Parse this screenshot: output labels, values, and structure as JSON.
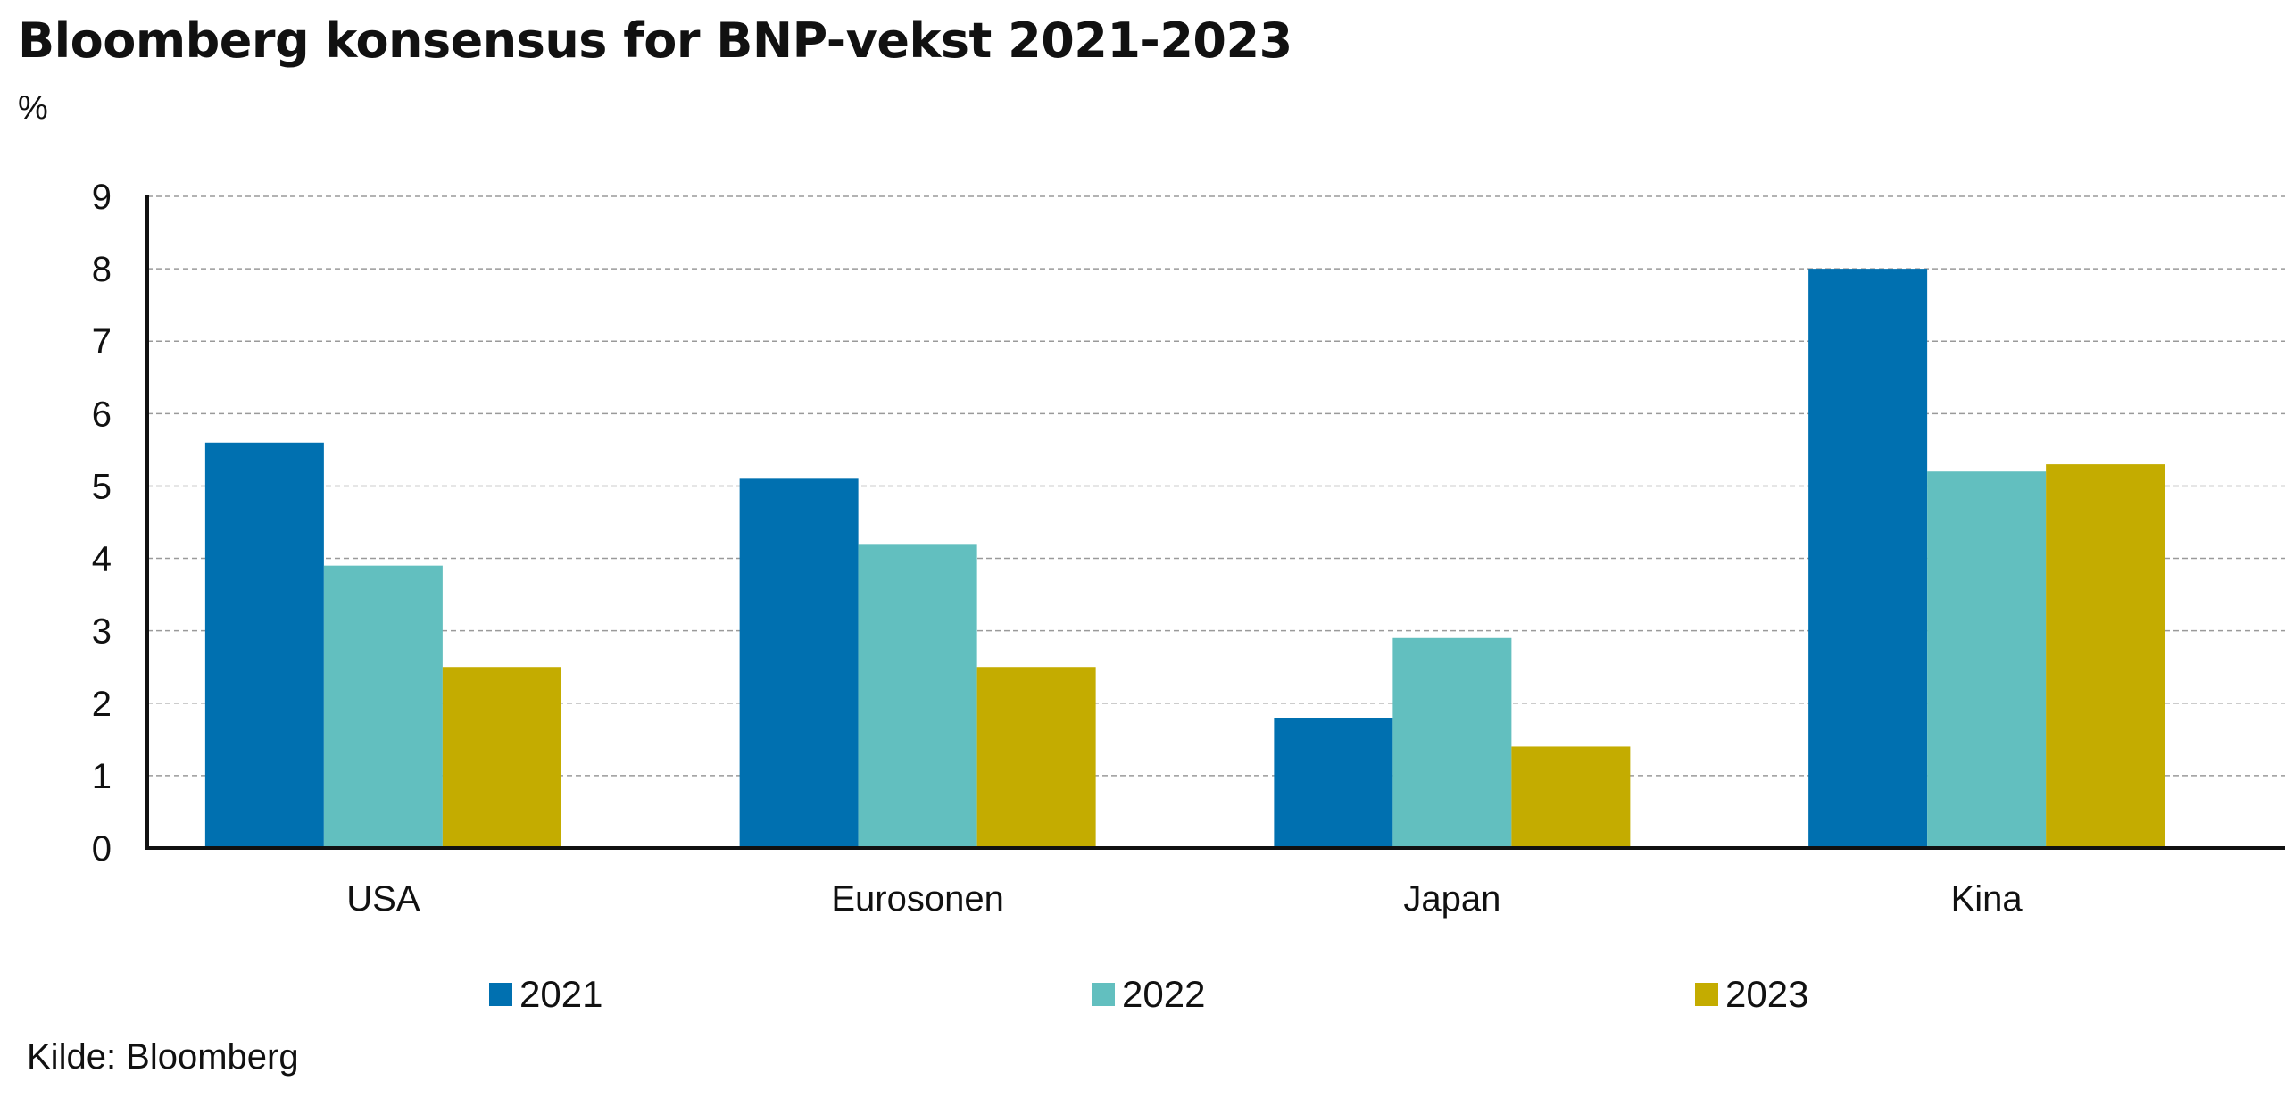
{
  "title": "Bloomberg konsensus for BNP-vekst 2021-2023",
  "unit_label": "%",
  "source": "Kilde: Bloomberg",
  "colors": {
    "2021": "#0070b0",
    "2022": "#62bfbf",
    "2023": "#c4ac00",
    "grid": "#9a9a9a",
    "axis": "#111111"
  },
  "chart_data": {
    "type": "bar",
    "title": "Bloomberg konsensus for BNP-vekst 2021-2023",
    "ylabel": "%",
    "xlabel": "",
    "categories": [
      "USA",
      "Eurosonen",
      "Japan",
      "Kina"
    ],
    "series": [
      {
        "name": "2021",
        "values": [
          5.6,
          5.1,
          1.8,
          8.0
        ]
      },
      {
        "name": "2022",
        "values": [
          3.9,
          4.2,
          2.9,
          5.2
        ]
      },
      {
        "name": "2023",
        "values": [
          2.5,
          2.5,
          1.4,
          5.3
        ]
      }
    ],
    "ylim": [
      0,
      9
    ],
    "yticks": [
      0,
      1,
      2,
      3,
      4,
      5,
      6,
      7,
      8,
      9
    ],
    "grid": true,
    "legend_position": "bottom"
  }
}
